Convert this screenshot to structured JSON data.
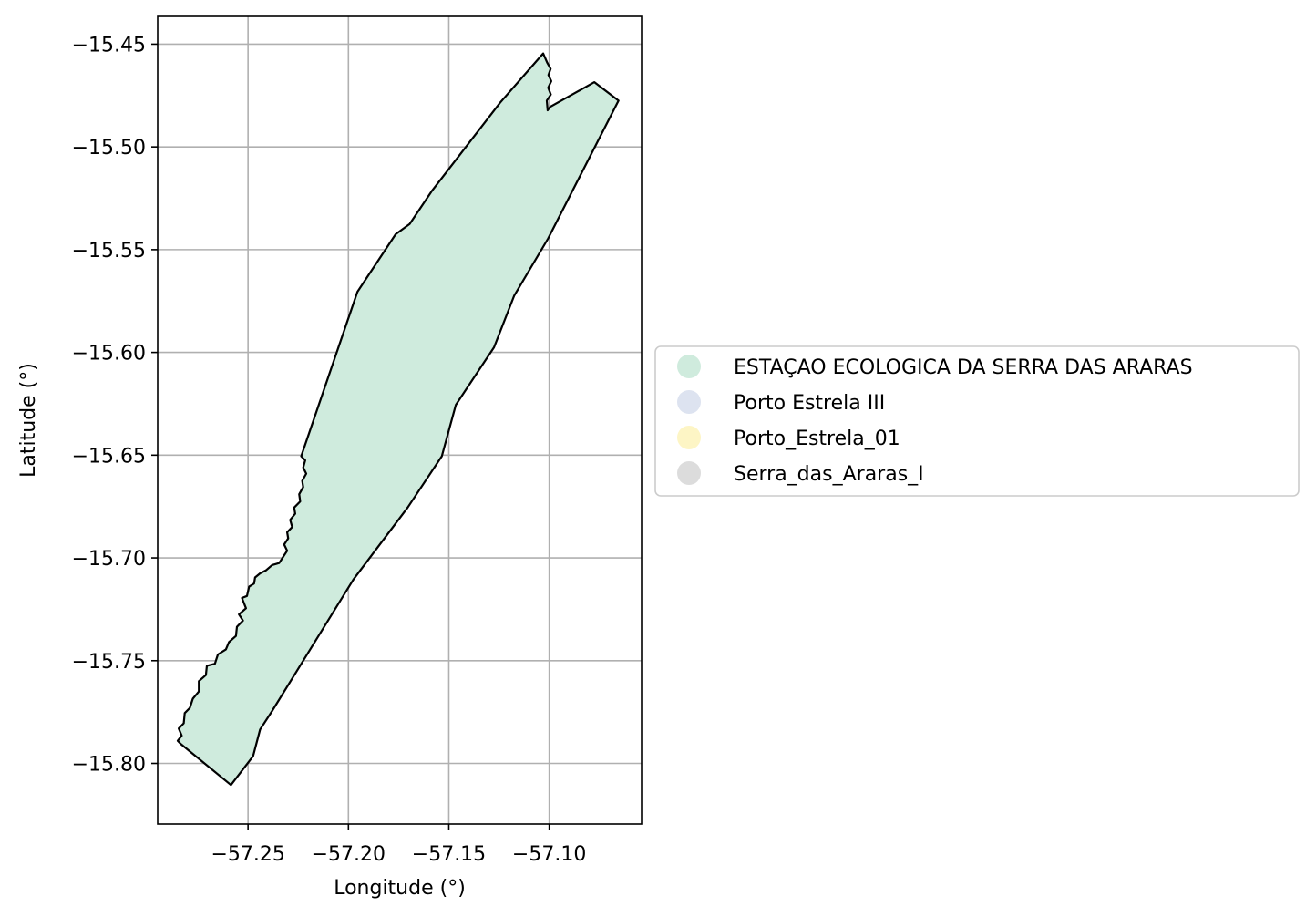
{
  "chart_data": {
    "type": "map",
    "xlabel": "Longitude (°)",
    "ylabel": "Latitude (°)",
    "xlim": [
      -57.295,
      -57.054
    ],
    "ylim": [
      -15.8295,
      -15.4365
    ],
    "x_ticks": [
      -57.25,
      -57.2,
      -57.15,
      -57.1
    ],
    "x_tick_labels": [
      "−57.25",
      "−57.20",
      "−57.15",
      "−57.10"
    ],
    "y_ticks": [
      -15.45,
      -15.5,
      -15.55,
      -15.6,
      -15.65,
      -15.7,
      -15.75,
      -15.8
    ],
    "y_tick_labels": [
      "−15.45",
      "−15.50",
      "−15.55",
      "−15.60",
      "−15.65",
      "−15.70",
      "−15.75",
      "−15.80"
    ],
    "grid": true,
    "legend_position": "center-left outside right",
    "legend": [
      {
        "label": "ESTAÇAO ECOLOGICA DA SERRA DAS ARARAS",
        "color": "#cfebdd"
      },
      {
        "label": "Porto Estrela III",
        "color": "#dde3f0"
      },
      {
        "label": "Porto_Estrela_01",
        "color": "#fdf5c5"
      },
      {
        "label": "Serra_das_Araras_I",
        "color": "#dcdcdc"
      }
    ],
    "polygons": [
      {
        "name": "ESTAÇAO ECOLOGICA DA SERRA DAS ARARAS",
        "fill": "#cfebdd",
        "edge": "#000000",
        "coords": [
          [
            -57.2835,
            -15.7905
          ],
          [
            -57.2585,
            -15.8105
          ],
          [
            -57.2475,
            -15.7965
          ],
          [
            -57.244,
            -15.7835
          ],
          [
            -57.238,
            -15.7745
          ],
          [
            -57.1975,
            -15.7105
          ],
          [
            -57.1705,
            -15.6755
          ],
          [
            -57.1535,
            -15.6505
          ],
          [
            -57.1465,
            -15.6255
          ],
          [
            -57.1275,
            -15.5975
          ],
          [
            -57.1175,
            -15.5725
          ],
          [
            -57.1005,
            -15.5445
          ],
          [
            -57.0655,
            -15.4775
          ],
          [
            -57.0775,
            -15.4685
          ],
          [
            -57.0995,
            -15.4805
          ],
          [
            -57.1008,
            -15.4822
          ],
          [
            -57.1012,
            -15.4775
          ],
          [
            -57.0992,
            -15.4745
          ],
          [
            -57.1005,
            -15.4712
          ],
          [
            -57.099,
            -15.468
          ],
          [
            -57.1004,
            -15.465
          ],
          [
            -57.0993,
            -15.462
          ],
          [
            -57.101,
            -15.459
          ],
          [
            -57.103,
            -15.4545
          ],
          [
            -57.1245,
            -15.4785
          ],
          [
            -57.1585,
            -15.5215
          ],
          [
            -57.1695,
            -15.5375
          ],
          [
            -57.1765,
            -15.5425
          ],
          [
            -57.1955,
            -15.5705
          ],
          [
            -57.2235,
            -15.6505
          ],
          [
            -57.2215,
            -15.6525
          ],
          [
            -57.2225,
            -15.656
          ],
          [
            -57.221,
            -15.659
          ],
          [
            -57.223,
            -15.6625
          ],
          [
            -57.2225,
            -15.6655
          ],
          [
            -57.2245,
            -15.669
          ],
          [
            -57.224,
            -15.6725
          ],
          [
            -57.227,
            -15.6755
          ],
          [
            -57.2265,
            -15.6785
          ],
          [
            -57.229,
            -15.6815
          ],
          [
            -57.228,
            -15.685
          ],
          [
            -57.2305,
            -15.6875
          ],
          [
            -57.23,
            -15.6905
          ],
          [
            -57.232,
            -15.6935
          ],
          [
            -57.2305,
            -15.6965
          ],
          [
            -57.2325,
            -15.6995
          ],
          [
            -57.2345,
            -15.7025
          ],
          [
            -57.238,
            -15.7035
          ],
          [
            -57.241,
            -15.706
          ],
          [
            -57.244,
            -15.7075
          ],
          [
            -57.2465,
            -15.7095
          ],
          [
            -57.247,
            -15.7125
          ],
          [
            -57.2495,
            -15.714
          ],
          [
            -57.2505,
            -15.7185
          ],
          [
            -57.253,
            -15.7195
          ],
          [
            -57.251,
            -15.7245
          ],
          [
            -57.2545,
            -15.7275
          ],
          [
            -57.2525,
            -15.7305
          ],
          [
            -57.2555,
            -15.7335
          ],
          [
            -57.256,
            -15.738
          ],
          [
            -57.2595,
            -15.741
          ],
          [
            -57.261,
            -15.7445
          ],
          [
            -57.265,
            -15.747
          ],
          [
            -57.2665,
            -15.7515
          ],
          [
            -57.2705,
            -15.7525
          ],
          [
            -57.271,
            -15.757
          ],
          [
            -57.2745,
            -15.76
          ],
          [
            -57.2745,
            -15.765
          ],
          [
            -57.2775,
            -15.7685
          ],
          [
            -57.279,
            -15.773
          ],
          [
            -57.2815,
            -15.7755
          ],
          [
            -57.282,
            -15.7805
          ],
          [
            -57.2845,
            -15.783
          ],
          [
            -57.283,
            -15.7865
          ],
          [
            -57.285,
            -15.789
          ],
          [
            -57.2835,
            -15.7905
          ]
        ]
      }
    ]
  }
}
